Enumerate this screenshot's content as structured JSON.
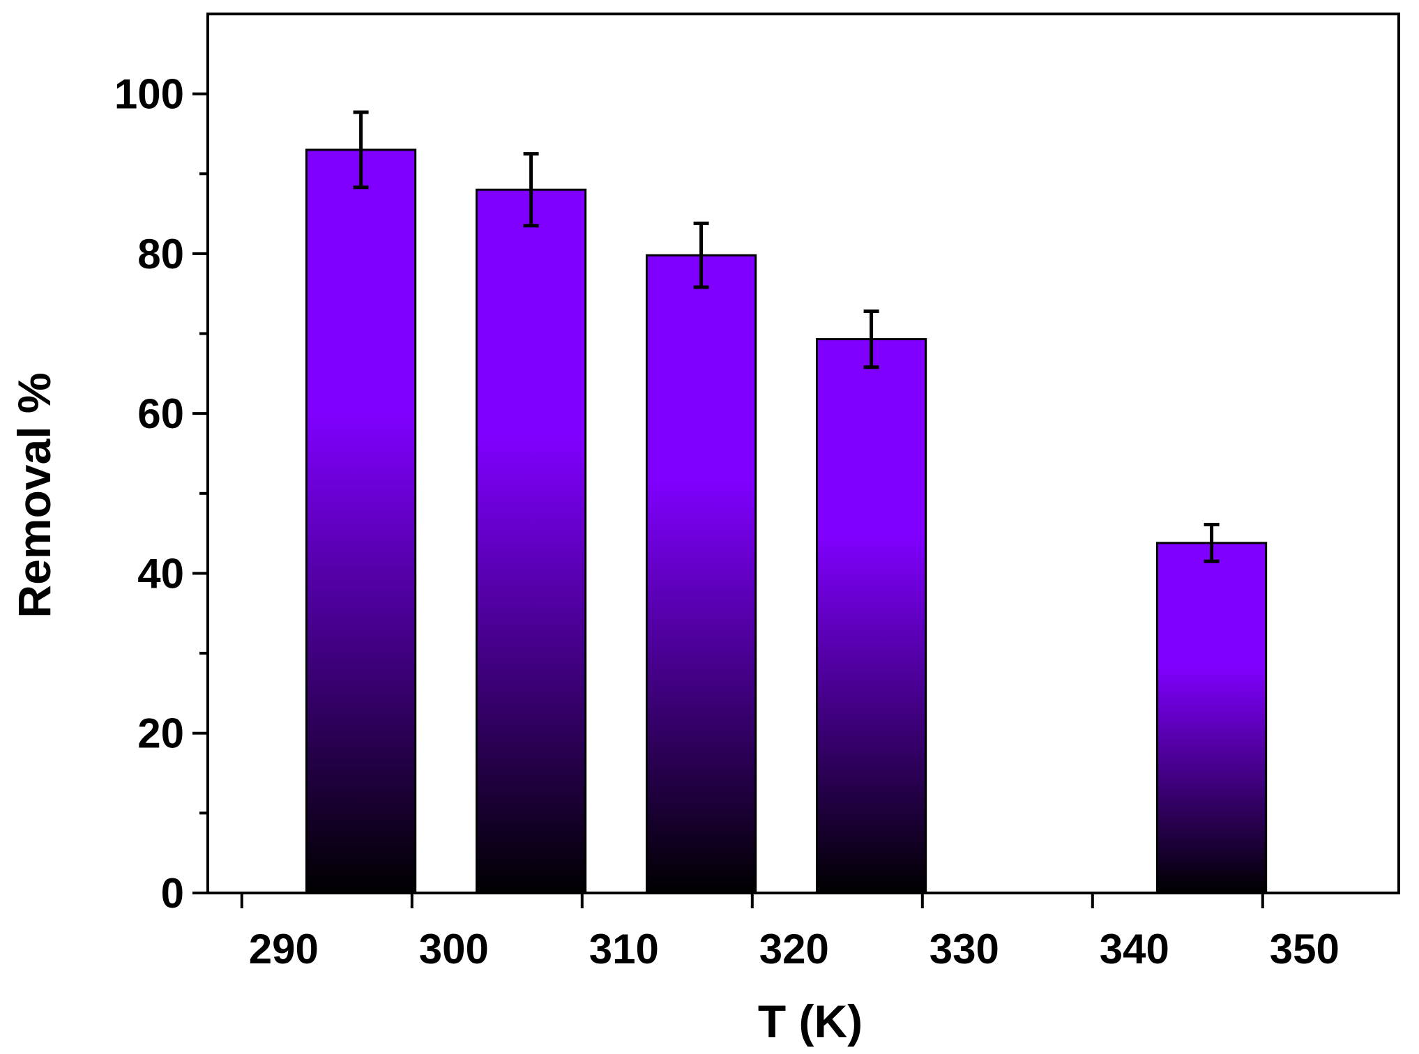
{
  "chart_data": {
    "type": "bar",
    "title": "",
    "xlabel": "T (K)",
    "ylabel": "Removal %",
    "xlim": [
      288,
      358
    ],
    "ylim": [
      0,
      110
    ],
    "x_ticks": [
      290,
      300,
      310,
      320,
      330,
      340,
      350
    ],
    "y_ticks": [
      0,
      20,
      40,
      60,
      80,
      100
    ],
    "y_minor_ticks": [
      10,
      30,
      50,
      70,
      90
    ],
    "bar_width": 6.4,
    "grid": false,
    "legend": "none",
    "gradient_colors": {
      "top": "#8000ff",
      "bottom": "#000000"
    },
    "series": [
      {
        "x": [
          297,
          307,
          317,
          327,
          347
        ],
        "values": [
          93.0,
          88.0,
          79.8,
          69.3,
          43.8
        ],
        "error": [
          4.7,
          4.5,
          4.0,
          3.5,
          2.3
        ]
      }
    ]
  }
}
